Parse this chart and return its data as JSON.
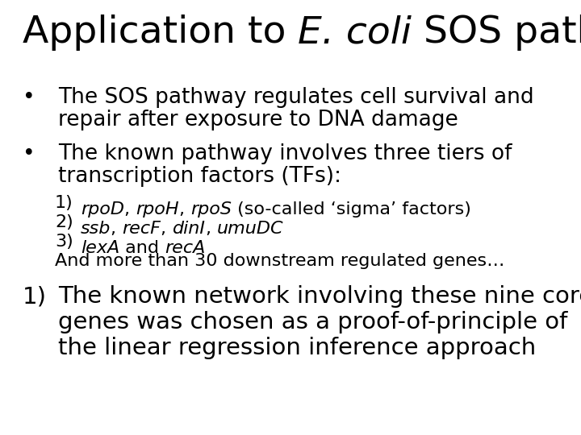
{
  "background_color": "#ffffff",
  "text_color": "#000000",
  "title_fontsize": 34,
  "body_fontsize": 19,
  "sub_fontsize": 16,
  "font_family": "DejaVu Sans"
}
